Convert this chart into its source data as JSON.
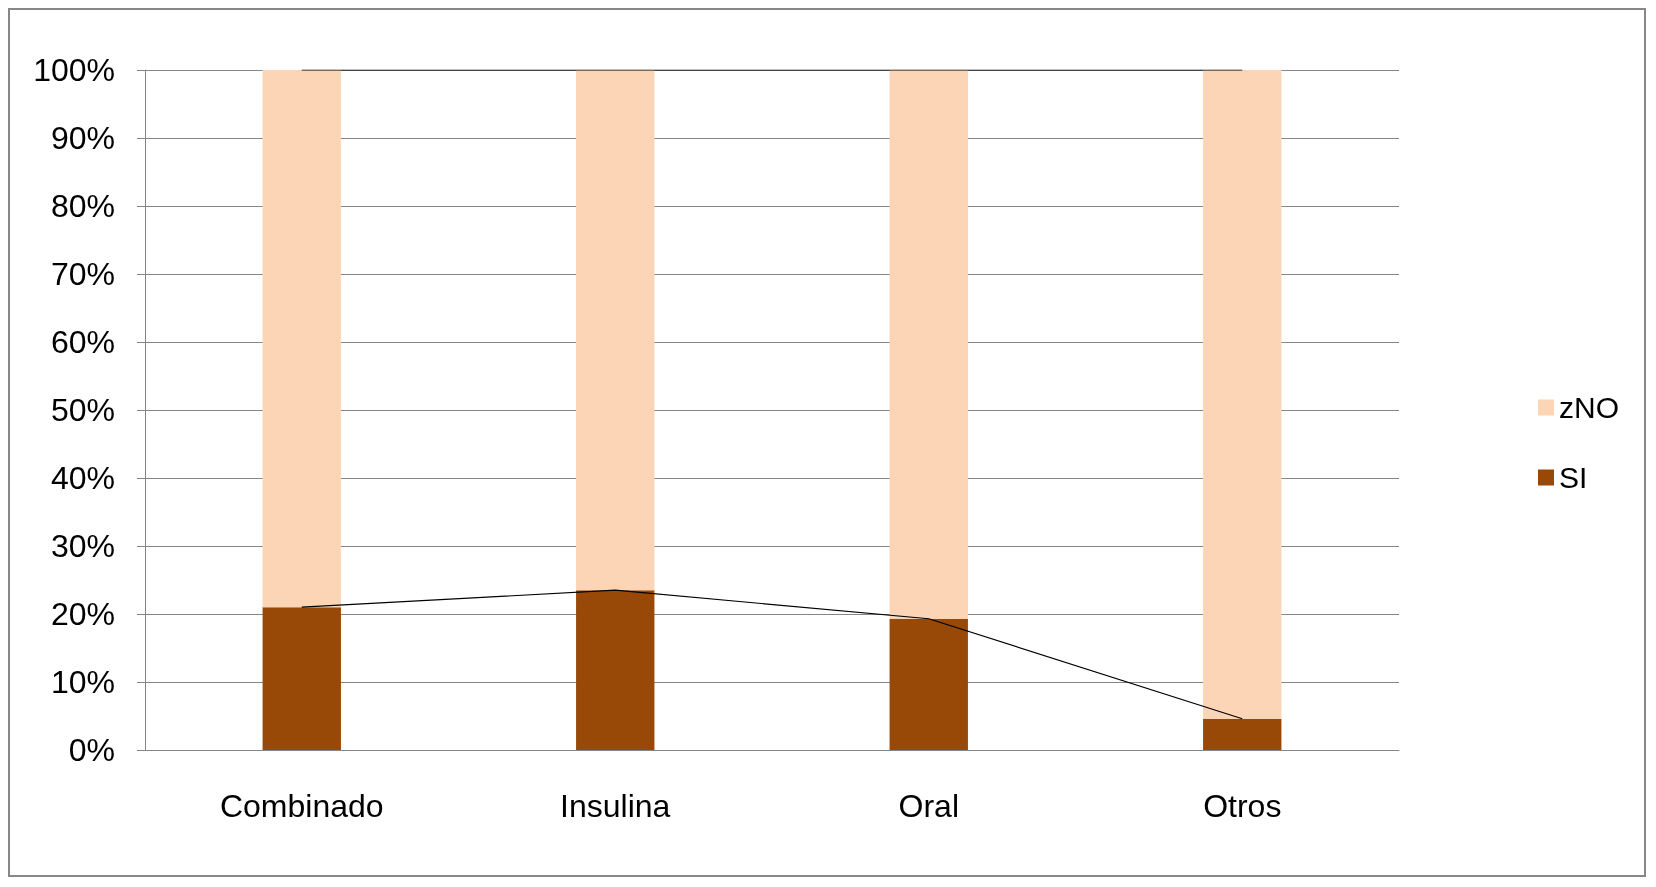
{
  "chart_data": {
    "type": "bar",
    "stacked": true,
    "categories": [
      "Combinado",
      "Insulina",
      "Oral",
      "Otros"
    ],
    "series": [
      {
        "name": "SI",
        "color": "#984807",
        "values": [
          21,
          23.5,
          19.3,
          4.6
        ]
      },
      {
        "name": "zNO",
        "color": "#fbd5b5",
        "values": [
          79,
          76.5,
          80.7,
          95.4
        ]
      },
      {
        "type": "line",
        "color": "#000000",
        "values": [
          21,
          23.5,
          19.3,
          4.6
        ]
      },
      {
        "type": "line",
        "color": "#000000",
        "values": [
          100,
          100,
          100,
          100
        ]
      }
    ],
    "ylim": [
      0,
      100
    ],
    "yticks": [
      {
        "value": 0,
        "label": "0%"
      },
      {
        "value": 10,
        "label": "10%"
      },
      {
        "value": 20,
        "label": "20%"
      },
      {
        "value": 30,
        "label": "30%"
      },
      {
        "value": 40,
        "label": "40%"
      },
      {
        "value": 50,
        "label": "50%"
      },
      {
        "value": 60,
        "label": "60%"
      },
      {
        "value": 70,
        "label": "70%"
      },
      {
        "value": 80,
        "label": "80%"
      },
      {
        "value": 90,
        "label": "90%"
      },
      {
        "value": 100,
        "label": "100%"
      }
    ],
    "grid": "y",
    "legend": "right",
    "marker": "none"
  }
}
